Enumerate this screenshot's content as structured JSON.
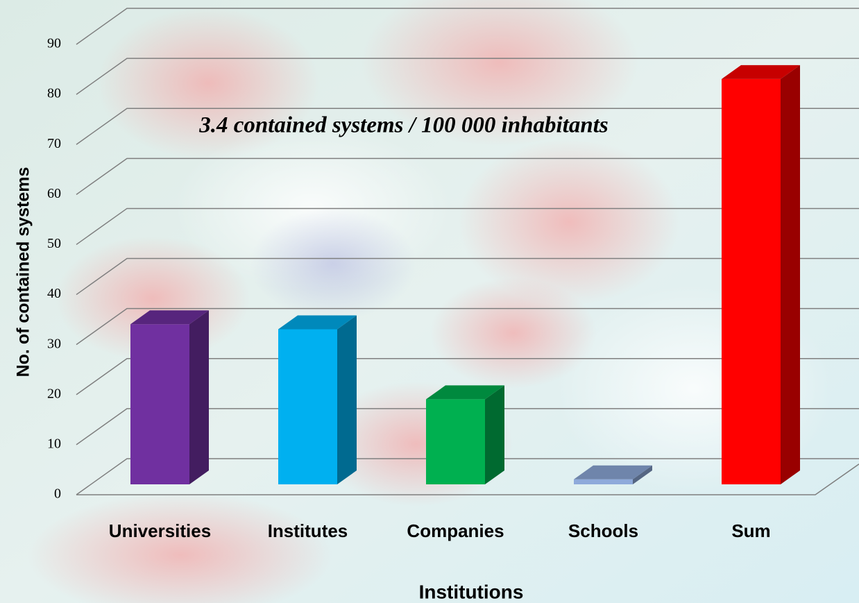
{
  "chart_data": {
    "type": "bar",
    "annotation": "3.4 contained systems / 100 000 inhabitants",
    "x_label": "Institutions",
    "y_label": "No. of contained systems",
    "categories": [
      "Universities",
      "Institutes",
      "Companies",
      "Schools",
      "Sum"
    ],
    "values": [
      32,
      31,
      17,
      1,
      81
    ],
    "colors": [
      "#7030a0",
      "#00b0f0",
      "#00b050",
      "#8eaadb",
      "#ff0000"
    ],
    "ylim": [
      0,
      90
    ],
    "yticks": [
      0,
      10,
      20,
      30,
      40,
      50,
      60,
      70,
      80,
      90
    ],
    "grid": true
  }
}
